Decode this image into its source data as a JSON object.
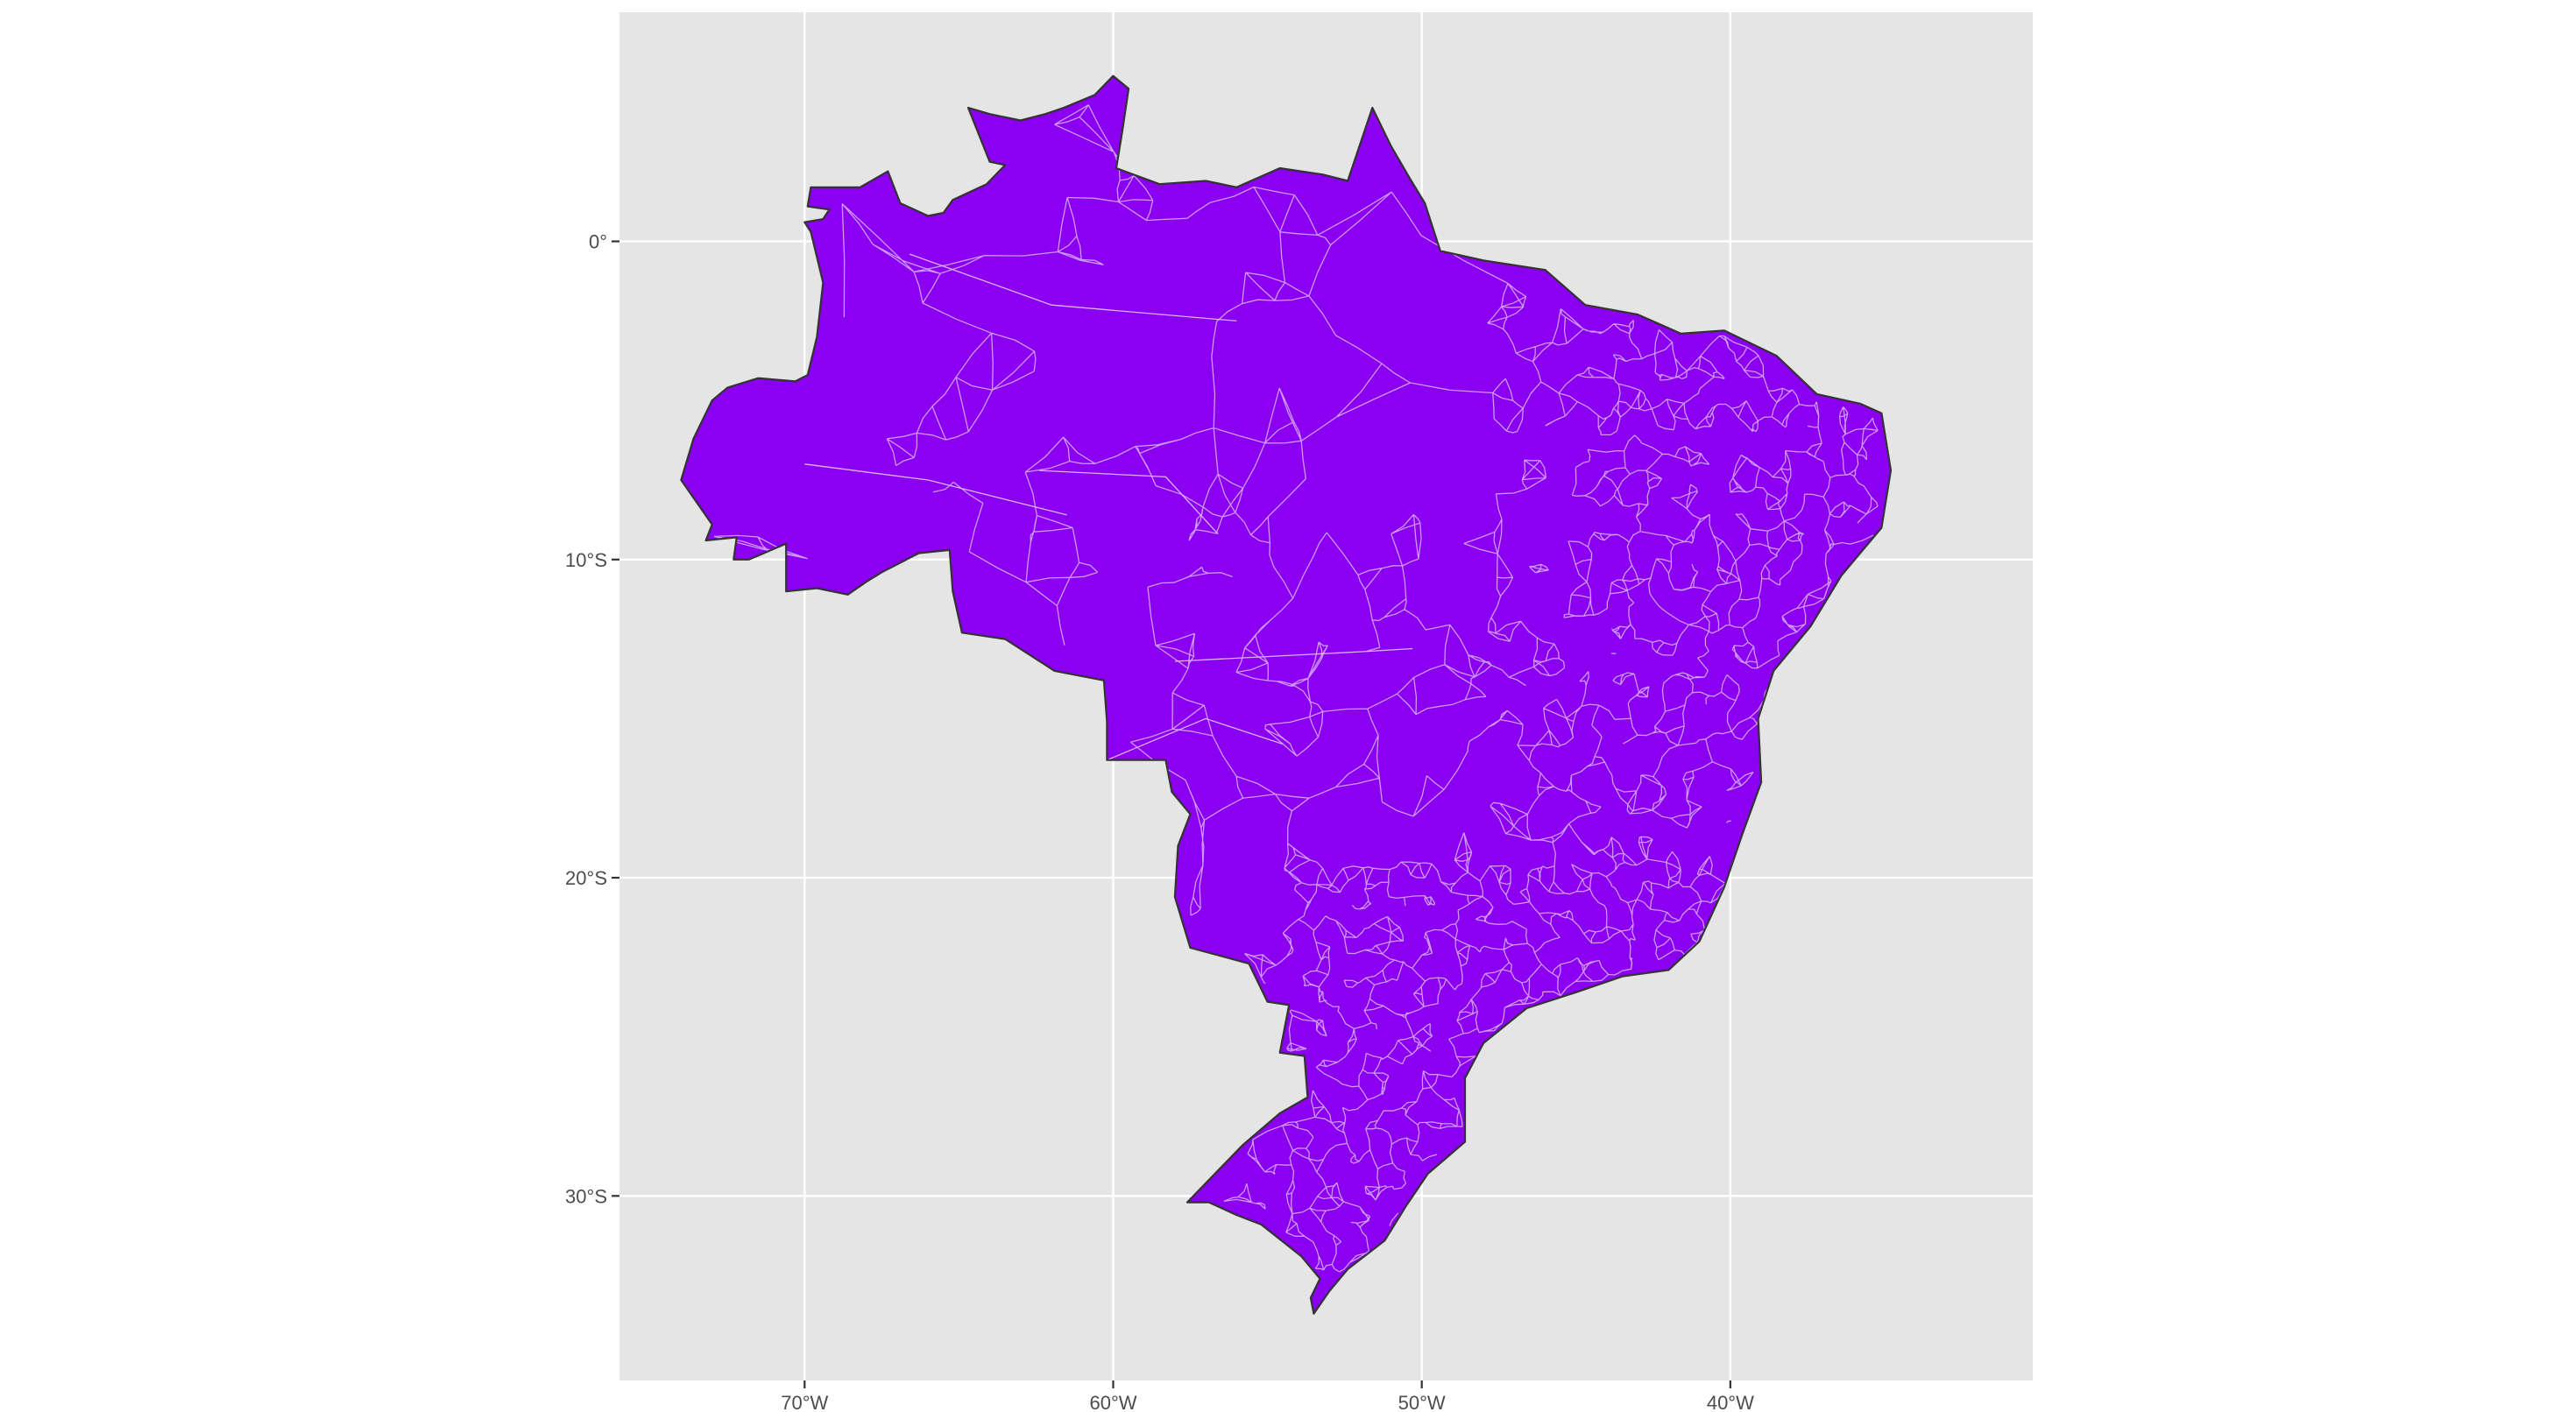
{
  "chart_data": {
    "type": "map",
    "title": "",
    "xlabel": "",
    "ylabel": "",
    "grid": true,
    "legend": "none",
    "projection": "geographic",
    "x_range": [
      -76,
      -30.2
    ],
    "y_range": [
      -35.8,
      7.2
    ],
    "x_ticks": [
      {
        "value": -70,
        "label": "70°W"
      },
      {
        "value": -60,
        "label": "60°W"
      },
      {
        "value": -50,
        "label": "50°W"
      },
      {
        "value": -40,
        "label": "40°W"
      }
    ],
    "y_ticks": [
      {
        "value": 0,
        "label": "0°"
      },
      {
        "value": -10,
        "label": "10°S"
      },
      {
        "value": -20,
        "label": "20°S"
      },
      {
        "value": -30,
        "label": "30°S"
      }
    ],
    "colors": {
      "panel": "#e5e5e5",
      "grid": "#ffffff",
      "fill": "#8b00f0",
      "border": "#333333",
      "municipality_lines": "#d9b3ff",
      "tick_text": "#4d4d4d",
      "tick_mark": "#333333"
    },
    "features": [
      {
        "name": "brazil-outline",
        "coords": [
          [
            -60.0,
            5.2
          ],
          [
            -59.5,
            4.8
          ],
          [
            -59.7,
            3.5
          ],
          [
            -59.9,
            2.3
          ],
          [
            -58.5,
            1.8
          ],
          [
            -57.0,
            1.9
          ],
          [
            -56.0,
            1.7
          ],
          [
            -54.6,
            2.3
          ],
          [
            -53.2,
            2.1
          ],
          [
            -52.4,
            1.9
          ],
          [
            -51.6,
            4.2
          ],
          [
            -51.0,
            3.0
          ],
          [
            -50.4,
            2.0
          ],
          [
            -49.9,
            1.2
          ],
          [
            -49.4,
            -0.3
          ],
          [
            -48.0,
            -0.6
          ],
          [
            -46.0,
            -0.9
          ],
          [
            -44.7,
            -2.0
          ],
          [
            -43.0,
            -2.3
          ],
          [
            -41.6,
            -2.9
          ],
          [
            -40.2,
            -2.8
          ],
          [
            -38.5,
            -3.6
          ],
          [
            -37.2,
            -4.8
          ],
          [
            -35.8,
            -5.1
          ],
          [
            -35.1,
            -5.4
          ],
          [
            -34.8,
            -7.2
          ],
          [
            -35.1,
            -9.0
          ],
          [
            -36.4,
            -10.5
          ],
          [
            -37.4,
            -12.1
          ],
          [
            -38.6,
            -13.5
          ],
          [
            -39.1,
            -15.0
          ],
          [
            -39.0,
            -17.0
          ],
          [
            -39.6,
            -18.6
          ],
          [
            -40.2,
            -20.3
          ],
          [
            -41.0,
            -22.0
          ],
          [
            -42.0,
            -22.9
          ],
          [
            -43.5,
            -23.1
          ],
          [
            -45.0,
            -23.6
          ],
          [
            -46.6,
            -24.1
          ],
          [
            -48.0,
            -25.2
          ],
          [
            -48.6,
            -26.3
          ],
          [
            -48.6,
            -28.3
          ],
          [
            -49.8,
            -29.3
          ],
          [
            -50.5,
            -30.3
          ],
          [
            -51.2,
            -31.4
          ],
          [
            -52.4,
            -32.3
          ],
          [
            -53.0,
            -33.0
          ],
          [
            -53.5,
            -33.7
          ],
          [
            -53.6,
            -33.2
          ],
          [
            -53.3,
            -32.6
          ],
          [
            -53.9,
            -31.9
          ],
          [
            -55.2,
            -30.9
          ],
          [
            -56.0,
            -30.6
          ],
          [
            -56.9,
            -30.2
          ],
          [
            -57.6,
            -30.2
          ],
          [
            -56.8,
            -29.4
          ],
          [
            -55.8,
            -28.4
          ],
          [
            -54.6,
            -27.4
          ],
          [
            -53.7,
            -26.9
          ],
          [
            -53.8,
            -25.6
          ],
          [
            -54.6,
            -25.5
          ],
          [
            -54.3,
            -24.0
          ],
          [
            -55.0,
            -23.9
          ],
          [
            -55.6,
            -22.7
          ],
          [
            -57.5,
            -22.2
          ],
          [
            -58.0,
            -20.6
          ],
          [
            -57.9,
            -19.0
          ],
          [
            -57.5,
            -18.0
          ],
          [
            -58.1,
            -17.3
          ],
          [
            -58.3,
            -16.3
          ],
          [
            -60.2,
            -16.3
          ],
          [
            -60.2,
            -15.1
          ],
          [
            -60.3,
            -13.8
          ],
          [
            -61.9,
            -13.5
          ],
          [
            -63.5,
            -12.5
          ],
          [
            -64.9,
            -12.3
          ],
          [
            -65.2,
            -11.0
          ],
          [
            -65.3,
            -9.7
          ],
          [
            -66.3,
            -9.8
          ],
          [
            -67.5,
            -10.4
          ],
          [
            -68.0,
            -10.7
          ],
          [
            -68.6,
            -11.1
          ],
          [
            -69.6,
            -10.9
          ],
          [
            -70.6,
            -11.0
          ],
          [
            -70.6,
            -9.5
          ],
          [
            -71.8,
            -10.0
          ],
          [
            -72.3,
            -10.0
          ],
          [
            -72.2,
            -9.3
          ],
          [
            -73.2,
            -9.4
          ],
          [
            -73.0,
            -8.9
          ],
          [
            -74.0,
            -7.5
          ],
          [
            -73.6,
            -6.2
          ],
          [
            -73.0,
            -5.0
          ],
          [
            -72.5,
            -4.6
          ],
          [
            -71.5,
            -4.3
          ],
          [
            -70.3,
            -4.4
          ],
          [
            -69.9,
            -4.2
          ],
          [
            -69.6,
            -3.0
          ],
          [
            -69.4,
            -1.3
          ],
          [
            -69.8,
            0.3
          ],
          [
            -70.0,
            0.6
          ],
          [
            -69.4,
            0.7
          ],
          [
            -69.2,
            1.0
          ],
          [
            -69.9,
            1.1
          ],
          [
            -69.8,
            1.7
          ],
          [
            -68.2,
            1.7
          ],
          [
            -67.3,
            2.2
          ],
          [
            -66.9,
            1.2
          ],
          [
            -66.0,
            0.8
          ],
          [
            -65.5,
            0.9
          ],
          [
            -65.2,
            1.3
          ],
          [
            -64.1,
            1.8
          ],
          [
            -63.5,
            2.4
          ],
          [
            -64.0,
            2.5
          ],
          [
            -64.7,
            4.2
          ],
          [
            -64.0,
            4.0
          ],
          [
            -63.0,
            3.8
          ],
          [
            -62.2,
            4.0
          ],
          [
            -61.6,
            4.2
          ],
          [
            -60.6,
            4.6
          ],
          [
            -60.0,
            5.2
          ]
        ]
      }
    ],
    "municipality_density": [
      {
        "region": "north",
        "level": "low"
      },
      {
        "region": "northeast",
        "level": "high"
      },
      {
        "region": "southeast",
        "level": "very-high"
      },
      {
        "region": "south",
        "level": "very-high"
      },
      {
        "region": "center-west",
        "level": "medium"
      }
    ]
  }
}
